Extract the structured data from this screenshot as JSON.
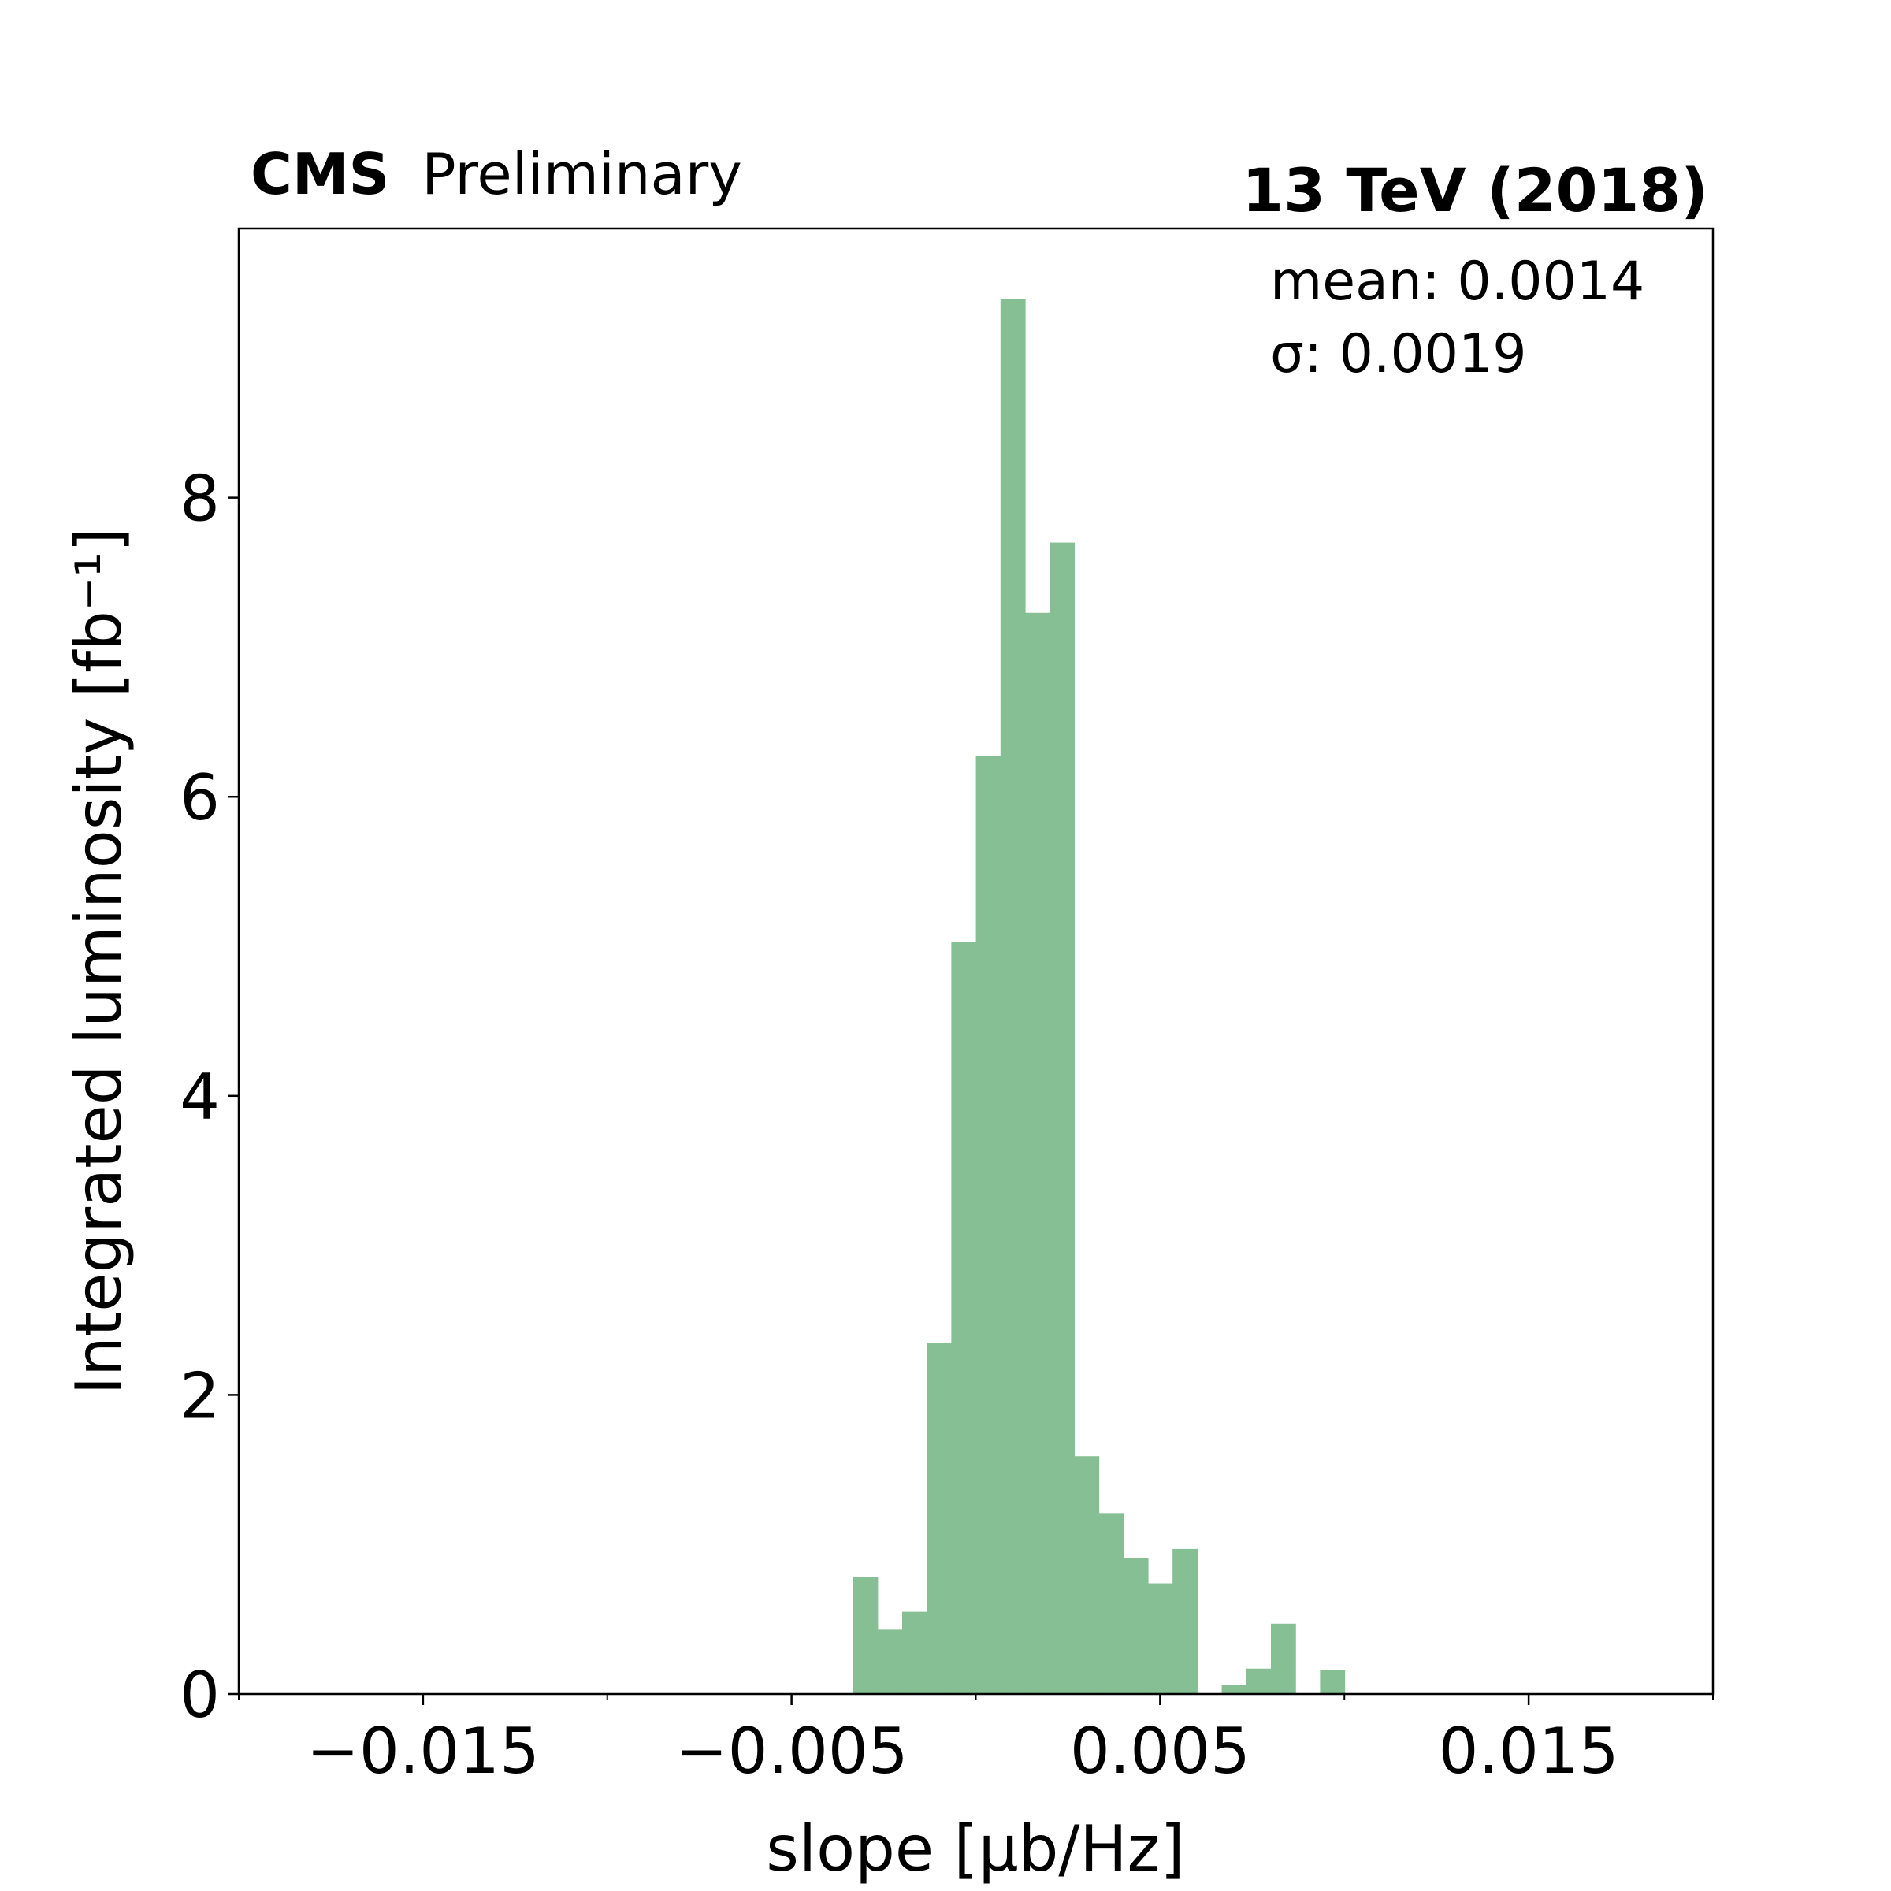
{
  "header": {
    "experiment": "CMS",
    "status": "Preliminary",
    "energy": "13 TeV (2018)"
  },
  "stats": {
    "mean": "mean: 0.0014",
    "sigma": "σ: 0.0019"
  },
  "chart_data": {
    "type": "bar",
    "xlabel": "slope [µb/Hz]",
    "ylabel": "Integrated luminosity [fb⁻¹]",
    "xlim": [
      -0.02,
      0.02
    ],
    "ylim": [
      0,
      9.8
    ],
    "x_ticks_major": [
      -0.015,
      -0.005,
      0.005,
      0.015
    ],
    "x_tick_labels": [
      "−0.015",
      "−0.005",
      "0.005",
      "0.015"
    ],
    "x_ticks_minor": [
      -0.02,
      -0.01,
      0.0,
      0.01,
      0.02
    ],
    "y_ticks": [
      0,
      2,
      4,
      6,
      8
    ],
    "y_tick_labels": [
      "0",
      "2",
      "4",
      "6",
      "8"
    ],
    "grid": false,
    "color": "#86bf93",
    "bin_width": 0.000667,
    "bin_edges_start": -0.003333,
    "values": [
      0.78,
      0.43,
      0.55,
      2.35,
      5.03,
      6.27,
      9.33,
      7.23,
      7.7,
      1.59,
      1.21,
      0.91,
      0.74,
      0.97,
      0.0,
      0.06,
      0.17,
      0.47,
      0.0,
      0.16
    ]
  }
}
